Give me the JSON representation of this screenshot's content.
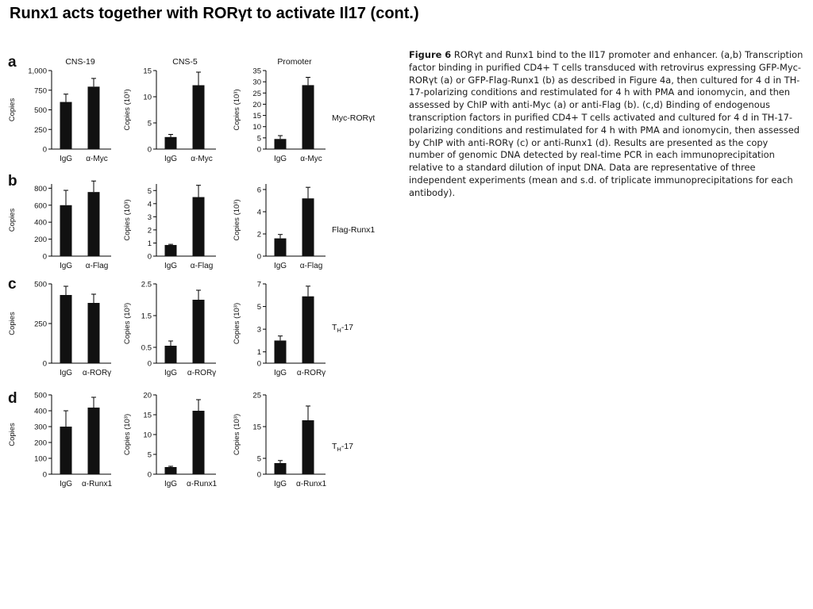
{
  "slide": {
    "title": "Runx1 acts together with RORγt to activate Il17 (cont.)"
  },
  "figure": {
    "column_headers": [
      "CNS-19",
      "CNS-5",
      "Promoter"
    ],
    "rows": [
      {
        "letter": "a",
        "side_label": "Myc-RORγt"
      },
      {
        "letter": "b",
        "side_label": "Flag-Runx1"
      },
      {
        "letter": "c",
        "side_label": "TH-17"
      },
      {
        "letter": "d",
        "side_label": "TH-17"
      }
    ],
    "caption": {
      "label": "Figure 6",
      "title": "RORγt and Runx1 bind to the Il17 promoter and enhancer.",
      "body": "(a,b) Transcription factor binding in purified CD4+ T cells transduced with retrovirus expressing GFP-Myc-RORγt (a) or GFP-Flag-Runx1 (b) as described in Figure 4a, then cultured for 4 d in TH-17-polarizing conditions and restimulated for 4 h with PMA and ionomycin, and then assessed by ChIP with anti-Myc (a) or anti-Flag (b). (c,d) Binding of endogenous transcription factors in purified CD4+ T cells activated and cultured for 4 d in TH-17-polarizing conditions and restimulated for 4 h with PMA and ionomycin, then assessed by ChIP with anti-RORγ (c) or anti-Runx1 (d). Results are presented as the copy number of genomic DNA detected by real-time PCR in each immunoprecipitation relative to a standard dilution of input DNA. Data are representative of three independent experiments (mean and s.d. of triplicate immunoprecipitations for each antibody)."
    }
  },
  "chart_data": [
    {
      "type": "bar",
      "panel": "a",
      "title": "CNS-19",
      "ylabel": "Copies",
      "ylim": [
        0,
        1000
      ],
      "yticks": [
        0,
        250,
        500,
        750,
        1000
      ],
      "ytick_labels": [
        "0",
        "250",
        "500",
        "750",
        "1,000"
      ],
      "categories": [
        "IgG",
        "α-Myc"
      ],
      "values": [
        600,
        795
      ],
      "errors": [
        100,
        105
      ]
    },
    {
      "type": "bar",
      "panel": "a",
      "title": "CNS-5",
      "ylabel": "Copies (10³)",
      "ylim": [
        0,
        15
      ],
      "yticks": [
        0,
        5,
        10,
        15
      ],
      "ytick_labels": [
        "0",
        "5",
        "10",
        "15"
      ],
      "categories": [
        "IgG",
        "α-Myc"
      ],
      "values": [
        2.3,
        12.2
      ],
      "errors": [
        0.5,
        2.5
      ]
    },
    {
      "type": "bar",
      "panel": "a",
      "title": "Promoter",
      "ylabel": "Copies (10³)",
      "ylim": [
        0,
        35
      ],
      "yticks": [
        0,
        5,
        10,
        15,
        20,
        25,
        30,
        35
      ],
      "ytick_labels": [
        "0",
        "5",
        "10",
        "15",
        "20",
        "25",
        "30",
        "35"
      ],
      "categories": [
        "IgG",
        "α-Myc"
      ],
      "values": [
        4.5,
        28.5
      ],
      "errors": [
        1.5,
        3.5
      ]
    },
    {
      "type": "bar",
      "panel": "b",
      "title": "",
      "ylabel": "Copies",
      "ylim": [
        0,
        850
      ],
      "yticks": [
        0,
        200,
        400,
        600,
        800
      ],
      "ytick_labels": [
        "0",
        "200",
        "400",
        "600",
        "800"
      ],
      "categories": [
        "IgG",
        "α-Flag"
      ],
      "values": [
        600,
        755
      ],
      "errors": [
        175,
        130
      ]
    },
    {
      "type": "bar",
      "panel": "b",
      "title": "",
      "ylabel": "Copies (10³)",
      "ylim": [
        0,
        5.5
      ],
      "yticks": [
        0,
        1,
        2,
        3,
        4,
        5
      ],
      "ytick_labels": [
        "0",
        "1",
        "2",
        "3",
        "4",
        "5"
      ],
      "categories": [
        "IgG",
        "α-Flag"
      ],
      "values": [
        0.85,
        4.5
      ],
      "errors": [
        0.05,
        0.9
      ]
    },
    {
      "type": "bar",
      "panel": "b",
      "title": "",
      "ylabel": "Copies (10³)",
      "ylim": [
        0,
        6.5
      ],
      "yticks": [
        0,
        2,
        4,
        6
      ],
      "ytick_labels": [
        "0",
        "2",
        "4",
        "6"
      ],
      "categories": [
        "IgG",
        "α-Flag"
      ],
      "values": [
        1.6,
        5.2
      ],
      "errors": [
        0.35,
        1.0
      ]
    },
    {
      "type": "bar",
      "panel": "c",
      "title": "",
      "ylabel": "Copies",
      "ylim": [
        0,
        500
      ],
      "yticks": [
        0,
        250,
        500
      ],
      "ytick_labels": [
        "0",
        "250",
        "500"
      ],
      "categories": [
        "IgG",
        "α-RORγ"
      ],
      "values": [
        430,
        380
      ],
      "errors": [
        55,
        55
      ]
    },
    {
      "type": "bar",
      "panel": "c",
      "title": "",
      "ylabel": "Copies (10³)",
      "ylim": [
        0,
        2.5
      ],
      "yticks": [
        0,
        0.5,
        1.5,
        2.5
      ],
      "ytick_labels": [
        "0",
        "0.5",
        "1.5",
        "2.5"
      ],
      "categories": [
        "IgG",
        "α-RORγ"
      ],
      "values": [
        0.55,
        2.0
      ],
      "errors": [
        0.15,
        0.3
      ]
    },
    {
      "type": "bar",
      "panel": "c",
      "title": "",
      "ylabel": "Copies (10³)",
      "ylim": [
        0,
        7
      ],
      "yticks": [
        0,
        1,
        3,
        5,
        7
      ],
      "ytick_labels": [
        "0",
        "1",
        "3",
        "5",
        "7"
      ],
      "categories": [
        "IgG",
        "α-RORγ"
      ],
      "values": [
        2.0,
        5.9
      ],
      "errors": [
        0.4,
        0.9
      ]
    },
    {
      "type": "bar",
      "panel": "d",
      "title": "",
      "ylabel": "Copies",
      "ylim": [
        0,
        500
      ],
      "yticks": [
        0,
        100,
        200,
        300,
        400,
        500
      ],
      "ytick_labels": [
        "0",
        "100",
        "200",
        "300",
        "400",
        "500"
      ],
      "categories": [
        "IgG",
        "α-Runx1"
      ],
      "values": [
        300,
        420
      ],
      "errors": [
        100,
        65
      ]
    },
    {
      "type": "bar",
      "panel": "d",
      "title": "",
      "ylabel": "Copies (10³)",
      "ylim": [
        0,
        20
      ],
      "yticks": [
        0,
        5,
        10,
        15,
        20
      ],
      "ytick_labels": [
        "0",
        "5",
        "10",
        "15",
        "20"
      ],
      "categories": [
        "IgG",
        "α-Runx1"
      ],
      "values": [
        1.8,
        16.0
      ],
      "errors": [
        0.2,
        2.8
      ]
    },
    {
      "type": "bar",
      "panel": "d",
      "title": "",
      "ylabel": "Copies (10³)",
      "ylim": [
        0,
        25
      ],
      "yticks": [
        0,
        5,
        15,
        25
      ],
      "ytick_labels": [
        "0",
        "5",
        "15",
        "25"
      ],
      "categories": [
        "IgG",
        "α-Runx1"
      ],
      "values": [
        3.5,
        17.0
      ],
      "errors": [
        0.8,
        4.5
      ]
    }
  ]
}
